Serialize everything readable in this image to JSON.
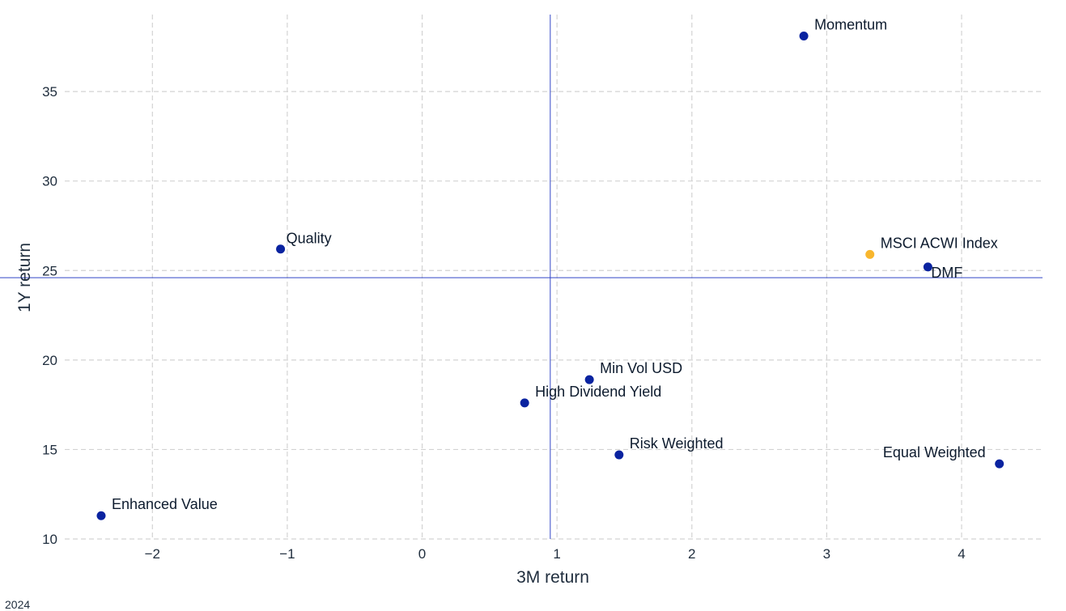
{
  "chart_data": {
    "type": "scatter",
    "xlabel": "3M return",
    "ylabel": "1Y return",
    "xlim": [
      -2.65,
      4.6
    ],
    "ylim": [
      10,
      39.3
    ],
    "x_ticks": [
      "−2",
      "−1",
      "0",
      "1",
      "2",
      "3",
      "4"
    ],
    "x_tick_values": [
      -2,
      -1,
      0,
      1,
      2,
      3,
      4
    ],
    "y_ticks": [
      "10",
      "15",
      "20",
      "25",
      "30",
      "35"
    ],
    "y_tick_values": [
      10,
      15,
      20,
      25,
      30,
      35
    ],
    "grid": true,
    "reference_lines": {
      "x": 0.95,
      "y": 24.6,
      "color": "#3347c8"
    },
    "colors": {
      "factor": "#0a23a0",
      "index": "#f8b62d"
    },
    "points": [
      {
        "label": "Momentum",
        "x": 2.83,
        "y": 38.1,
        "kind": "factor"
      },
      {
        "label": "Quality",
        "x": -1.05,
        "y": 26.2,
        "kind": "factor"
      },
      {
        "label": "MSCI ACWI Index",
        "x": 3.32,
        "y": 25.9,
        "kind": "index"
      },
      {
        "label": "DMF",
        "x": 3.75,
        "y": 25.2,
        "kind": "factor"
      },
      {
        "label": "Min Vol USD",
        "x": 1.24,
        "y": 18.9,
        "kind": "factor"
      },
      {
        "label": "High Dividend Yield",
        "x": 0.76,
        "y": 17.6,
        "kind": "factor"
      },
      {
        "label": "Risk Weighted",
        "x": 1.46,
        "y": 14.7,
        "kind": "factor"
      },
      {
        "label": "Equal Weighted",
        "x": 4.28,
        "y": 14.2,
        "kind": "factor"
      },
      {
        "label": "Enhanced Value",
        "x": -2.38,
        "y": 11.3,
        "kind": "factor"
      }
    ]
  },
  "footnote": "2024"
}
